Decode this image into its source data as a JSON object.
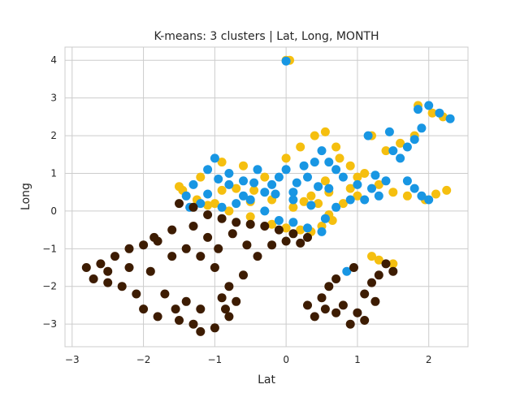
{
  "chart_data": {
    "type": "scatter",
    "title": "K-means: 3 clusters | Lat, Long, MONTH",
    "xlabel": "Lat",
    "ylabel": "Long",
    "xlim": [
      -3.1,
      2.55
    ],
    "ylim": [
      -3.6,
      4.35
    ],
    "xticks": [
      -3,
      -2,
      -1,
      0,
      1,
      2
    ],
    "xtick_labels": [
      "−3",
      "−2",
      "−1",
      "0",
      "1",
      "2"
    ],
    "yticks": [
      -3,
      -2,
      -1,
      0,
      1,
      2,
      3,
      4
    ],
    "ytick_labels": [
      "−3",
      "−2",
      "−1",
      "0",
      "1",
      "2",
      "3",
      "4"
    ],
    "grid": true,
    "legend": false,
    "series": [
      {
        "color": "#f5bf0f",
        "points": [
          [
            0.0,
            4.0
          ],
          [
            0.05,
            4.0
          ],
          [
            -1.45,
            0.55
          ],
          [
            -1.2,
            0.9
          ],
          [
            -0.9,
            1.3
          ],
          [
            -0.6,
            1.2
          ],
          [
            -0.3,
            0.9
          ],
          [
            0.0,
            1.4
          ],
          [
            0.2,
            1.7
          ],
          [
            0.4,
            2.0
          ],
          [
            0.55,
            2.1
          ],
          [
            0.7,
            1.7
          ],
          [
            0.9,
            1.2
          ],
          [
            1.1,
            1.0
          ],
          [
            1.3,
            0.7
          ],
          [
            1.0,
            0.4
          ],
          [
            0.8,
            0.2
          ],
          [
            0.6,
            -0.1
          ],
          [
            0.5,
            -0.4
          ],
          [
            0.35,
            -0.55
          ],
          [
            0.2,
            -0.5
          ],
          [
            0.0,
            -0.45
          ],
          [
            -0.2,
            -0.35
          ],
          [
            -0.5,
            -0.15
          ],
          [
            -0.8,
            0.0
          ],
          [
            -1.0,
            0.2
          ],
          [
            -1.25,
            0.3
          ],
          [
            -1.5,
            0.65
          ],
          [
            -0.45,
            0.55
          ],
          [
            -0.2,
            0.3
          ],
          [
            0.1,
            0.1
          ],
          [
            0.35,
            0.4
          ],
          [
            0.55,
            0.8
          ],
          [
            0.75,
            1.4
          ],
          [
            0.6,
            0.5
          ],
          [
            0.45,
            0.2
          ],
          [
            1.2,
            -1.2
          ],
          [
            1.3,
            -1.3
          ],
          [
            1.5,
            -1.4
          ],
          [
            1.2,
            2.0
          ],
          [
            1.4,
            1.6
          ],
          [
            1.6,
            1.8
          ],
          [
            1.8,
            2.0
          ],
          [
            1.85,
            2.8
          ],
          [
            2.05,
            2.6
          ],
          [
            2.2,
            2.5
          ],
          [
            2.25,
            0.55
          ],
          [
            2.1,
            0.45
          ],
          [
            1.95,
            0.3
          ],
          [
            1.7,
            0.4
          ],
          [
            1.5,
            0.5
          ],
          [
            -0.9,
            0.55
          ],
          [
            -1.1,
            0.15
          ],
          [
            -0.7,
            0.6
          ],
          [
            -0.5,
            0.25
          ],
          [
            0.25,
            0.25
          ],
          [
            0.65,
            -0.25
          ],
          [
            1.0,
            0.9
          ],
          [
            0.9,
            0.6
          ]
        ]
      },
      {
        "color": "#1896e3",
        "points": [
          [
            0.0,
            3.98
          ],
          [
            -1.4,
            0.4
          ],
          [
            -1.3,
            0.7
          ],
          [
            -1.1,
            1.1
          ],
          [
            -1.0,
            1.4
          ],
          [
            -0.8,
            1.0
          ],
          [
            -0.6,
            0.8
          ],
          [
            -0.4,
            1.1
          ],
          [
            -0.2,
            0.7
          ],
          [
            0.0,
            1.1
          ],
          [
            0.1,
            0.5
          ],
          [
            0.3,
            0.9
          ],
          [
            0.4,
            1.3
          ],
          [
            0.5,
            1.6
          ],
          [
            0.6,
            1.3
          ],
          [
            0.8,
            0.9
          ],
          [
            1.0,
            0.7
          ],
          [
            1.2,
            0.6
          ],
          [
            1.4,
            0.8
          ],
          [
            1.5,
            1.6
          ],
          [
            1.6,
            1.4
          ],
          [
            1.7,
            1.7
          ],
          [
            1.8,
            1.9
          ],
          [
            1.9,
            2.2
          ],
          [
            1.85,
            2.7
          ],
          [
            2.0,
            2.8
          ],
          [
            2.15,
            2.6
          ],
          [
            2.3,
            2.45
          ],
          [
            1.7,
            0.8
          ],
          [
            1.8,
            0.6
          ],
          [
            1.9,
            0.4
          ],
          [
            2.0,
            0.3
          ],
          [
            0.9,
            0.3
          ],
          [
            0.7,
            0.1
          ],
          [
            0.55,
            -0.2
          ],
          [
            0.5,
            -0.55
          ],
          [
            0.3,
            -0.45
          ],
          [
            0.1,
            -0.3
          ],
          [
            -0.1,
            -0.25
          ],
          [
            -0.3,
            0.0
          ],
          [
            -0.5,
            0.3
          ],
          [
            -0.7,
            0.2
          ],
          [
            -0.9,
            0.1
          ],
          [
            -1.1,
            0.45
          ],
          [
            -1.2,
            0.2
          ],
          [
            -1.35,
            0.1
          ],
          [
            -0.6,
            0.4
          ],
          [
            -0.3,
            0.5
          ],
          [
            0.1,
            0.3
          ],
          [
            0.35,
            0.15
          ],
          [
            0.6,
            0.6
          ],
          [
            0.7,
            1.1
          ],
          [
            0.25,
            1.2
          ],
          [
            -0.1,
            0.9
          ],
          [
            -0.8,
            0.7
          ],
          [
            1.1,
            0.3
          ],
          [
            1.3,
            0.4
          ],
          [
            0.85,
            -1.6
          ],
          [
            1.15,
            2.0
          ],
          [
            1.45,
            2.1
          ],
          [
            0.45,
            0.65
          ],
          [
            0.15,
            0.75
          ],
          [
            -0.15,
            0.45
          ],
          [
            -0.45,
            0.75
          ],
          [
            -0.95,
            0.85
          ],
          [
            1.25,
            0.95
          ]
        ]
      },
      {
        "color": "#3d1c02",
        "points": [
          [
            -1.5,
            0.2
          ],
          [
            -1.3,
            0.1
          ],
          [
            -1.1,
            -0.1
          ],
          [
            -0.9,
            -0.2
          ],
          [
            -0.7,
            -0.3
          ],
          [
            -0.5,
            -0.35
          ],
          [
            -0.3,
            -0.4
          ],
          [
            -0.1,
            -0.5
          ],
          [
            0.1,
            -0.6
          ],
          [
            0.3,
            -0.7
          ],
          [
            -1.6,
            -0.5
          ],
          [
            -1.8,
            -0.8
          ],
          [
            -2.0,
            -0.9
          ],
          [
            -2.2,
            -1.0
          ],
          [
            -2.4,
            -1.2
          ],
          [
            -2.6,
            -1.4
          ],
          [
            -2.8,
            -1.5
          ],
          [
            -2.7,
            -1.8
          ],
          [
            -2.5,
            -1.9
          ],
          [
            -2.3,
            -2.0
          ],
          [
            -2.1,
            -2.2
          ],
          [
            -2.0,
            -2.6
          ],
          [
            -1.8,
            -2.8
          ],
          [
            -1.5,
            -2.9
          ],
          [
            -1.3,
            -3.0
          ],
          [
            -1.2,
            -3.2
          ],
          [
            -1.0,
            -3.1
          ],
          [
            -0.8,
            -2.8
          ],
          [
            -0.7,
            -2.4
          ],
          [
            -0.8,
            -2.0
          ],
          [
            -1.0,
            -1.5
          ],
          [
            -1.2,
            -1.2
          ],
          [
            -1.4,
            -1.0
          ],
          [
            -1.6,
            -1.2
          ],
          [
            -1.7,
            -2.2
          ],
          [
            -1.4,
            -2.4
          ],
          [
            -1.2,
            -2.6
          ],
          [
            -0.9,
            -2.3
          ],
          [
            -0.6,
            -1.7
          ],
          [
            -0.4,
            -1.2
          ],
          [
            -0.2,
            -0.9
          ],
          [
            0.0,
            -0.8
          ],
          [
            0.2,
            -0.85
          ],
          [
            -1.9,
            -1.6
          ],
          [
            -2.2,
            -1.5
          ],
          [
            -0.95,
            -1.0
          ],
          [
            -0.75,
            -0.6
          ],
          [
            -0.55,
            -0.9
          ],
          [
            -1.1,
            -0.7
          ],
          [
            -1.3,
            -0.4
          ],
          [
            0.3,
            -2.5
          ],
          [
            0.4,
            -2.8
          ],
          [
            0.5,
            -2.3
          ],
          [
            0.6,
            -2.0
          ],
          [
            0.7,
            -1.8
          ],
          [
            0.8,
            -2.5
          ],
          [
            0.9,
            -3.0
          ],
          [
            1.0,
            -2.7
          ],
          [
            1.1,
            -2.2
          ],
          [
            1.2,
            -1.9
          ],
          [
            1.3,
            -1.7
          ],
          [
            1.4,
            -1.4
          ],
          [
            1.1,
            -2.9
          ],
          [
            0.7,
            -2.7
          ],
          [
            1.5,
            -1.6
          ],
          [
            0.95,
            -1.5
          ],
          [
            0.55,
            -2.6
          ],
          [
            1.25,
            -2.4
          ],
          [
            -2.5,
            -1.6
          ],
          [
            -1.85,
            -0.7
          ],
          [
            -1.55,
            -2.6
          ],
          [
            -0.85,
            -2.6
          ]
        ]
      }
    ]
  }
}
